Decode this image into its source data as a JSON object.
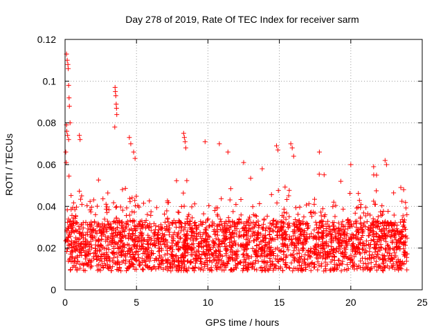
{
  "chart_data": {
    "type": "scatter",
    "title": "Day 278 of 2019, Rate Of TEC Index for receiver sarm",
    "xlabel": "GPS time / hours",
    "ylabel": "ROTI / TECUs",
    "xlim": [
      0,
      25
    ],
    "ylim": [
      0,
      0.12
    ],
    "xticks": [
      0,
      5,
      10,
      15,
      20,
      25
    ],
    "xtick_labels": [
      "0",
      "5",
      "10",
      "15",
      "20",
      "25"
    ],
    "yticks": [
      0,
      0.02,
      0.04,
      0.06,
      0.08,
      0.1,
      0.12
    ],
    "ytick_labels": [
      "0",
      "0.02",
      "0.04",
      "0.06",
      "0.08",
      "0.1",
      "0.12"
    ],
    "grid": true,
    "marker": "+",
    "color": "#ff0000",
    "series": [
      {
        "name": "ROTI",
        "description_points": "dense cloud, bulk between 0.008 and 0.035, upper tail to ~0.05",
        "x": [
          0.1,
          0.15,
          0.2,
          0.22,
          0.25,
          0.28,
          0.3,
          0.35,
          0.1,
          0.12,
          0.18,
          0.25,
          0.05,
          0.08,
          1.0,
          1.05,
          3.5,
          3.52,
          3.55,
          3.58,
          3.6,
          3.62,
          3.48,
          4.5,
          4.6,
          4.8,
          4.9,
          8.3,
          8.35,
          8.4,
          8.45,
          9.8,
          10.8,
          11.4,
          12.5,
          13.8,
          14.8,
          14.9,
          15.8,
          15.9,
          16.0,
          17.8,
          19.3,
          20.0,
          21.6,
          21.8,
          22.4,
          22.5,
          23.5,
          23.7
        ],
        "y": [
          0.113,
          0.11,
          0.108,
          0.106,
          0.098,
          0.092,
          0.088,
          0.08,
          0.079,
          0.076,
          0.074,
          0.072,
          0.066,
          0.061,
          0.074,
          0.072,
          0.097,
          0.095,
          0.093,
          0.089,
          0.087,
          0.084,
          0.078,
          0.073,
          0.07,
          0.066,
          0.063,
          0.075,
          0.073,
          0.071,
          0.068,
          0.071,
          0.07,
          0.066,
          0.061,
          0.058,
          0.069,
          0.067,
          0.07,
          0.068,
          0.064,
          0.066,
          0.052,
          0.06,
          0.059,
          0.055,
          0.062,
          0.06,
          0.049,
          0.048
        ]
      }
    ]
  }
}
